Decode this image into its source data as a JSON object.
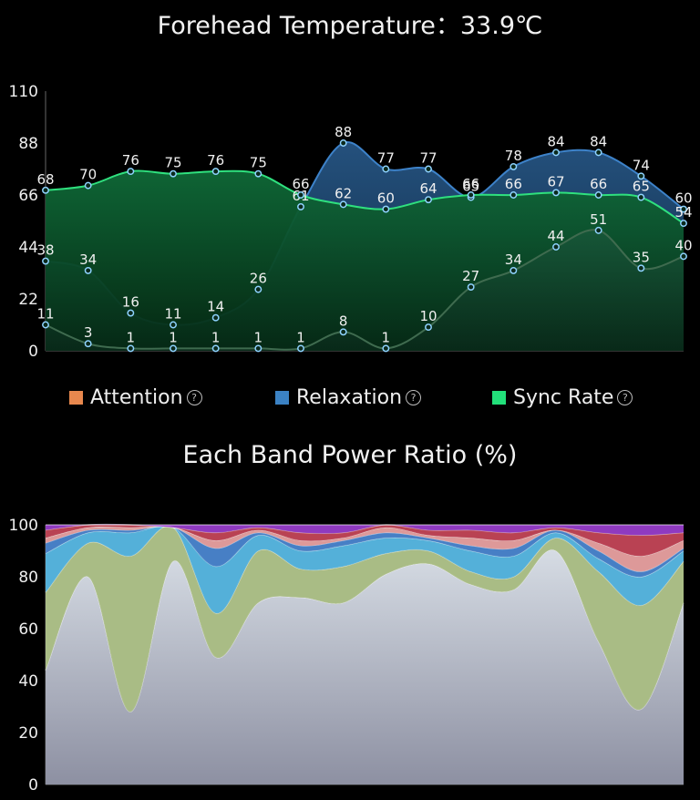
{
  "header": {
    "title": "Forehead Temperature：33.9℃"
  },
  "legend": [
    {
      "label": "Attention",
      "color": "#e8884e",
      "help": "?"
    },
    {
      "label": "Relaxation",
      "color": "#3b82c4",
      "help": "?"
    },
    {
      "label": "Sync Rate",
      "color": "#22e07a",
      "help": "?"
    }
  ],
  "band_title": "Each Band Power Ratio (%)",
  "chart_data": [
    {
      "type": "area",
      "title": "",
      "ylim": [
        0,
        110
      ],
      "yticks": [
        0,
        22,
        44,
        66,
        88,
        110
      ],
      "n_points": 16,
      "series": [
        {
          "name": "Attention",
          "color": "#e8884e",
          "values": [
            11,
            3,
            1,
            1,
            1,
            1,
            1,
            8,
            1,
            10,
            27,
            34,
            44,
            51,
            35,
            40
          ]
        },
        {
          "name": "Relaxation",
          "color": "#3b82c4",
          "values": [
            38,
            34,
            16,
            11,
            14,
            26,
            61,
            88,
            77,
            77,
            65,
            78,
            84,
            84,
            74,
            60
          ]
        },
        {
          "name": "Sync Rate",
          "color": "#22e07a",
          "values": [
            68,
            70,
            76,
            75,
            76,
            75,
            66,
            62,
            60,
            64,
            66,
            66,
            67,
            66,
            65,
            54
          ]
        }
      ]
    },
    {
      "type": "area",
      "title": "Each Band Power Ratio (%)",
      "ylim": [
        0,
        100
      ],
      "yticks": [
        0,
        20,
        40,
        60,
        80,
        100
      ],
      "stacked": true,
      "n_points": 16,
      "series": [
        {
          "color": "#d2d8e0",
          "values": [
            44,
            80,
            28,
            86,
            49,
            70,
            72,
            70,
            81,
            85,
            77,
            75,
            90,
            55,
            29,
            70
          ]
        },
        {
          "color": "#b7cc90",
          "values": [
            30,
            13,
            60,
            13,
            17,
            20,
            11,
            14,
            8,
            5,
            5,
            5,
            5,
            27,
            40,
            16
          ]
        },
        {
          "color": "#5bbfec",
          "values": [
            15,
            4,
            9,
            0,
            18,
            6,
            7,
            8,
            6,
            4,
            8,
            8,
            2,
            5,
            11,
            4
          ]
        },
        {
          "color": "#4d8ad6",
          "values": [
            4,
            1,
            1,
            0,
            7,
            1,
            2,
            2,
            2,
            1,
            2,
            3,
            1,
            3,
            2,
            1
          ]
        },
        {
          "color": "#f0a6a6",
          "values": [
            2,
            1,
            1,
            0,
            3,
            1,
            2,
            1,
            2,
            1,
            3,
            3,
            0,
            3,
            6,
            3
          ]
        },
        {
          "color": "#c9485a",
          "values": [
            3,
            1,
            1,
            0,
            3,
            1,
            3,
            2,
            1,
            2,
            3,
            3,
            1,
            4,
            8,
            3
          ]
        },
        {
          "color": "#9b3fd0",
          "values": [
            2,
            0,
            0,
            1,
            3,
            1,
            3,
            3,
            0,
            2,
            2,
            3,
            1,
            3,
            4,
            3
          ]
        }
      ]
    }
  ]
}
